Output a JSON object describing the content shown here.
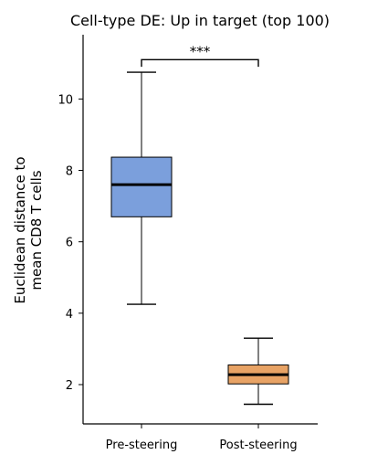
{
  "chart_data": {
    "type": "box",
    "title": "Cell-type DE: Up in target (top 100)",
    "xlabel": "",
    "ylabel_lines": [
      "Euclidean distance to",
      "mean CD8 T cells"
    ],
    "ylim": [
      0.9,
      11.8
    ],
    "yticks": [
      2,
      4,
      6,
      8,
      10
    ],
    "categories": [
      "Pre-steering",
      "Post-steering"
    ],
    "boxes": [
      {
        "label": "Pre-steering",
        "color": "#7b9fdc",
        "whisker_low": 4.25,
        "q1": 6.7,
        "median": 7.6,
        "q3": 8.37,
        "whisker_high": 10.75
      },
      {
        "label": "Post-steering",
        "color": "#e8a365",
        "whisker_low": 1.45,
        "q1": 2.02,
        "median": 2.28,
        "q3": 2.55,
        "whisker_high": 3.3
      }
    ],
    "significance": {
      "label": "***",
      "y": 11.1,
      "drop": 0.2
    },
    "grid": false,
    "legend": "none"
  }
}
